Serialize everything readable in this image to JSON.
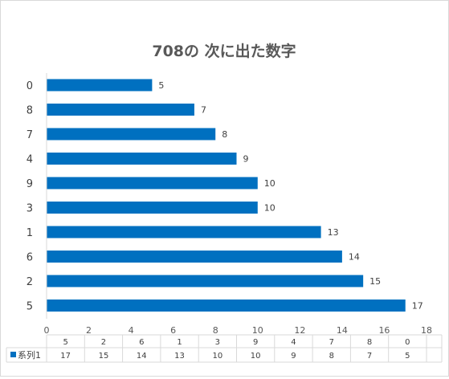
{
  "chart_data": {
    "type": "bar",
    "orientation": "horizontal",
    "title": "708の 次に出た数字",
    "categories": [
      "0",
      "8",
      "7",
      "4",
      "9",
      "3",
      "1",
      "6",
      "2",
      "5"
    ],
    "series": [
      {
        "name": "系列1",
        "values": [
          5,
          7,
          8,
          9,
          10,
          10,
          13,
          14,
          15,
          17
        ]
      }
    ],
    "xlim": [
      0,
      18
    ],
    "xticks": [
      0,
      2,
      4,
      6,
      8,
      10,
      12,
      14,
      16,
      18
    ],
    "data_labels": true,
    "grid": false,
    "legend": "data-table-left",
    "data_table": {
      "header": [
        "5",
        "2",
        "6",
        "1",
        "3",
        "9",
        "4",
        "7",
        "8",
        "0"
      ],
      "series_name": "系列1",
      "row": [
        17,
        15,
        14,
        13,
        10,
        10,
        9,
        8,
        7,
        5
      ]
    },
    "colors": {
      "bar": "#0070c0",
      "axis": "#d9d9d9",
      "table_line": "#d9d9d9"
    }
  }
}
